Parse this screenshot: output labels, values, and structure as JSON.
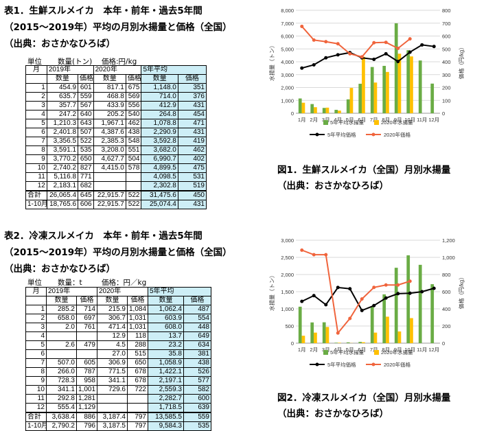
{
  "table1": {
    "title": "表1．生鮮スルメイカ　本年・前年・過去5年間",
    "subtitle": "（2015〜2019年）平均の月別水揚量と価格（全国）",
    "source": "（出典：おさかなひろば）",
    "unit_label": "単位",
    "qty_unit": "数量(トン)",
    "price_unit": "価格:円/kg",
    "headers": {
      "month": "月",
      "y2019": "2019年",
      "y2020": "2020年",
      "avg5": "5年平均",
      "qty": "数量",
      "price": "価格"
    },
    "rows": [
      [
        "1",
        "454.9",
        "601",
        "817.1",
        "675",
        "1,148.0",
        "351"
      ],
      [
        "2",
        "635.7",
        "559",
        "468.8",
        "569",
        "714.0",
        "376"
      ],
      [
        "3",
        "357.7",
        "567",
        "433.9",
        "556",
        "412.9",
        "431"
      ],
      [
        "4",
        "247.2",
        "640",
        "205.2",
        "540",
        "264.8",
        "454"
      ],
      [
        "5",
        "1,210.3",
        "643",
        "1,967.1",
        "462",
        "1,078.8",
        "471"
      ],
      [
        "6",
        "2,401.8",
        "507",
        "4,387.6",
        "438",
        "2,290.9",
        "431"
      ],
      [
        "7",
        "3,356.5",
        "522",
        "2,385.3",
        "548",
        "3,592.8",
        "419"
      ],
      [
        "8",
        "3,591.1",
        "535",
        "3,208.0",
        "551",
        "3,682.0",
        "462"
      ],
      [
        "9",
        "3,770.2",
        "650",
        "4,627.7",
        "504",
        "6,990.7",
        "402"
      ],
      [
        "10",
        "2,740.2",
        "827",
        "4,415.0",
        "578",
        "4,899.5",
        "475"
      ],
      [
        "11",
        "5,116.8",
        "771",
        "",
        "",
        "4,098.5",
        "531"
      ],
      [
        "12",
        "2,183.1",
        "682",
        "",
        "",
        "2,302.8",
        "519"
      ]
    ],
    "total": [
      "合計",
      "26,065.4",
      "645",
      "22,915.7",
      "522",
      "31,475.6",
      "450"
    ],
    "jan_oct": [
      "1-10月",
      "18,765.6",
      "606",
      "22,915.7",
      "522",
      "25,074.4",
      "431"
    ]
  },
  "table2": {
    "title": "表2．冷凍スルメイカ　本年・前年・過去5年間",
    "subtitle": "（2015〜2019年）平均の月別水揚量と価格（全国）",
    "source": "（出典：おさかなひろば）",
    "unit_label": "単位",
    "qty_unit": "数量：t",
    "price_unit": "価格：円／kg",
    "headers": {
      "month": "月",
      "y2019": "2019年",
      "y2020": "2020年",
      "avg5": "5年平均",
      "qty": "数量",
      "price": "価格"
    },
    "rows": [
      [
        "1",
        "285.2",
        "714",
        "215.9",
        "1,084",
        "1,062.4",
        "487"
      ],
      [
        "2",
        "658.0",
        "697",
        "306.7",
        "1,031",
        "603.9",
        "554"
      ],
      [
        "3",
        "2.0",
        "761",
        "471.4",
        "1,031",
        "608.0",
        "448"
      ],
      [
        "4",
        "",
        "",
        "12.9",
        "118",
        "13.7",
        "649"
      ],
      [
        "5",
        "2.6",
        "479",
        "4.5",
        "288",
        "23.2",
        "634"
      ],
      [
        "6",
        "",
        "",
        "27.0",
        "515",
        "35.8",
        "381"
      ],
      [
        "7",
        "507.0",
        "605",
        "306.9",
        "650",
        "1,058.9",
        "438"
      ],
      [
        "8",
        "266.0",
        "787",
        "771.5",
        "678",
        "1,422.1",
        "526"
      ],
      [
        "9",
        "728.3",
        "958",
        "341.1",
        "678",
        "2,197.1",
        "577"
      ],
      [
        "10",
        "341.1",
        "1,001",
        "729.6",
        "722",
        "2,559.3",
        "582"
      ],
      [
        "11",
        "292.8",
        "1,281",
        "",
        "",
        "2,282.7",
        "600"
      ],
      [
        "12",
        "555.4",
        "1,129",
        "",
        "",
        "1,718.5",
        "639"
      ]
    ],
    "total": [
      "合計",
      "3,638.4",
      "886",
      "3,187.4",
      "797",
      "13,585.5",
      "559"
    ],
    "jan_oct": [
      "1-10月",
      "2,790.2",
      "796",
      "3,187.5",
      "797",
      "9,584.3",
      "535"
    ]
  },
  "chart_data": [
    {
      "type": "bar",
      "caption": "図1．生鮮スルメイカ（全国）月別水揚量",
      "source": "（出典：おさかなひろば）",
      "categories": [
        "1月",
        "2月",
        "3月",
        "4月",
        "5月",
        "6月",
        "7月",
        "8月",
        "9月",
        "10月",
        "11月",
        "12月"
      ],
      "ylabel": "水揚量（トン）",
      "y2label": "価格（円/kg）",
      "ylim": [
        0,
        8000
      ],
      "y2lim": [
        0,
        800
      ],
      "yticks": [
        "0",
        "1,000",
        "2,000",
        "3,000",
        "4,000",
        "5,000",
        "6,000",
        "7,000",
        "8,000"
      ],
      "y2ticks": [
        "0",
        "100",
        "200",
        "300",
        "400",
        "500",
        "600",
        "700",
        "800"
      ],
      "series": [
        {
          "name": "5年平均水揚量",
          "kind": "bar",
          "axis": "left",
          "values": [
            1148.0,
            714.0,
            412.9,
            264.8,
            1078.8,
            2290.9,
            3592.8,
            3682.0,
            6990.7,
            4899.5,
            4098.5,
            2302.8
          ]
        },
        {
          "name": "2020年水揚量",
          "kind": "bar",
          "axis": "left",
          "values": [
            817.1,
            468.8,
            433.9,
            205.2,
            1967.1,
            4387.6,
            2385.3,
            3208.0,
            4627.7,
            4415.0,
            null,
            null
          ]
        },
        {
          "name": "5年平均価格",
          "kind": "line",
          "axis": "right",
          "values": [
            351,
            376,
            431,
            454,
            471,
            431,
            419,
            462,
            402,
            475,
            531,
            519
          ]
        },
        {
          "name": "2020年価格",
          "kind": "line",
          "axis": "right",
          "values": [
            675,
            569,
            556,
            540,
            462,
            438,
            548,
            551,
            504,
            578,
            null,
            null
          ]
        }
      ],
      "colors": {
        "avg_bar": "#6aac45",
        "y2020_bar": "#ffc000",
        "avg_line": "#000000",
        "y2020_line": "#f0643c"
      },
      "grid": true,
      "legend": "bottom"
    },
    {
      "type": "bar",
      "caption": "図2．冷凍スルメイカ（全国）月別水揚量",
      "source": "（出典：おさかなひろば）",
      "categories": [
        "1月",
        "2月",
        "3月",
        "4月",
        "5月",
        "6月",
        "7月",
        "8月",
        "9月",
        "10月",
        "11月",
        "12月"
      ],
      "ylabel": "水揚量（トン）",
      "y2label": "価格（円/kg）",
      "ylim": [
        0,
        3000
      ],
      "y2lim": [
        0,
        1200
      ],
      "yticks": [
        "0",
        "500",
        "1,000",
        "1,500",
        "2,000",
        "2,500",
        "3,000"
      ],
      "y2ticks": [
        "0",
        "200",
        "400",
        "600",
        "800",
        "1,000",
        "1,200"
      ],
      "series": [
        {
          "name": "5年平均水揚量",
          "kind": "bar",
          "axis": "left",
          "values": [
            1062.4,
            603.9,
            608.0,
            13.7,
            23.2,
            35.8,
            1058.9,
            1422.1,
            2197.1,
            2559.3,
            2282.7,
            1718.5
          ]
        },
        {
          "name": "2020年水揚量",
          "kind": "bar",
          "axis": "left",
          "values": [
            215.9,
            306.7,
            471.4,
            12.9,
            4.5,
            27.0,
            306.9,
            771.5,
            341.1,
            729.6,
            null,
            null
          ]
        },
        {
          "name": "5年平均価格",
          "kind": "line",
          "axis": "right",
          "values": [
            487,
            554,
            448,
            649,
            634,
            381,
            438,
            526,
            577,
            582,
            600,
            639
          ]
        },
        {
          "name": "2020年価格",
          "kind": "line",
          "axis": "right",
          "values": [
            1084,
            1031,
            1031,
            118,
            288,
            515,
            650,
            678,
            678,
            722,
            null,
            null
          ]
        }
      ],
      "colors": {
        "avg_bar": "#6aac45",
        "y2020_bar": "#ffc000",
        "avg_line": "#000000",
        "y2020_line": "#f0643c"
      },
      "grid": true,
      "legend": "bottom"
    }
  ]
}
